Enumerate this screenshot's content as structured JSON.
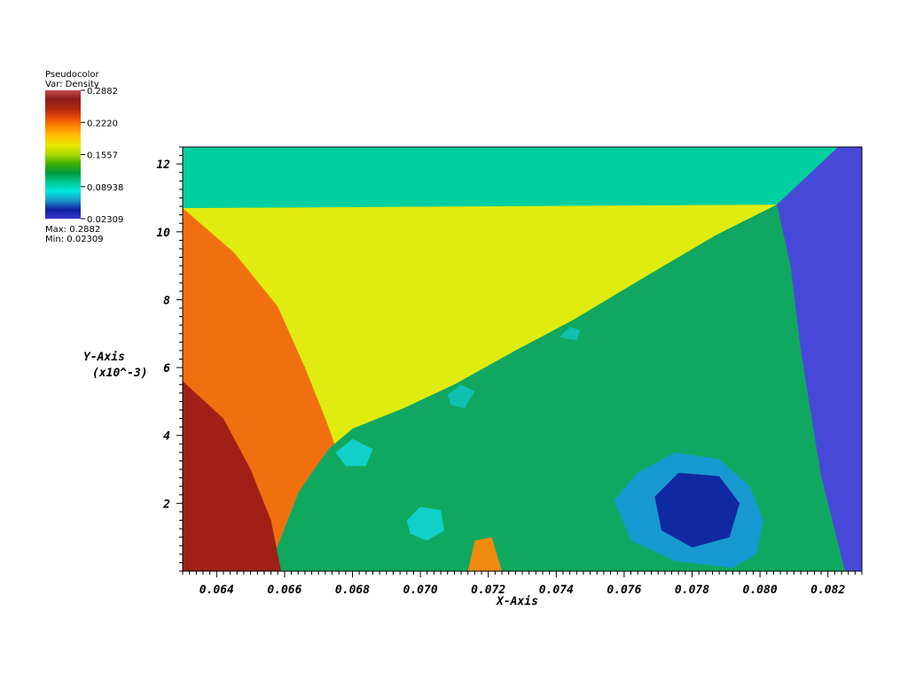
{
  "legend": {
    "plot_type": "Pseudocolor",
    "variable": "Var: Density",
    "max_label": "Max: 0.2882",
    "min_label": "Min: 0.02309",
    "ticks": [
      "0.2882",
      "0.2220",
      "0.1557",
      "0.08938",
      "0.02309"
    ],
    "colors": [
      "#c64848",
      "#8b1a1a",
      "#b22a10",
      "#e84a08",
      "#ff8a00",
      "#ffc000",
      "#e8e800",
      "#a8d800",
      "#40b000",
      "#009a40",
      "#00c890",
      "#00e8e0",
      "#1898c8",
      "#1020a0",
      "#3838c8"
    ]
  },
  "chart_data": {
    "type": "heatmap",
    "title": "",
    "xlabel": "X-Axis",
    "ylabel": "Y-Axis",
    "ylabel_scale": "(x10^-3)",
    "xlim": [
      0.063,
      0.083
    ],
    "ylim": [
      0,
      12.5
    ],
    "x_ticks": [
      "0.064",
      "0.066",
      "0.068",
      "0.070",
      "0.072",
      "0.074",
      "0.076",
      "0.078",
      "0.080",
      "0.082"
    ],
    "x_tick_values": [
      0.064,
      0.066,
      0.068,
      0.07,
      0.072,
      0.074,
      0.076,
      0.078,
      0.08,
      0.082
    ],
    "y_ticks": [
      "2",
      "4",
      "6",
      "8",
      "10",
      "12"
    ],
    "y_tick_values": [
      2,
      4,
      6,
      8,
      10,
      12
    ],
    "variable": "Density",
    "value_range": [
      0.02309,
      0.2882
    ],
    "regions": [
      {
        "id": "top-band",
        "color": "#00d0a0",
        "points": [
          [
            0.063,
            12.5
          ],
          [
            0.0823,
            12.5
          ],
          [
            0.0805,
            10.8
          ],
          [
            0.063,
            10.7
          ]
        ]
      },
      {
        "id": "right-region",
        "color": "#4848d8",
        "points": [
          [
            0.0823,
            12.5
          ],
          [
            0.083,
            12.5
          ],
          [
            0.083,
            0
          ],
          [
            0.0825,
            0
          ],
          [
            0.0818,
            2.8
          ],
          [
            0.0805,
            10.8
          ]
        ]
      },
      {
        "id": "yellow-wedge",
        "color": "#e0ec10",
        "points": [
          [
            0.063,
            10.7
          ],
          [
            0.0805,
            10.8
          ],
          [
            0.0787,
            9.9
          ],
          [
            0.0765,
            8.6
          ],
          [
            0.0745,
            7.4
          ],
          [
            0.0728,
            6.5
          ],
          [
            0.071,
            5.5
          ],
          [
            0.0695,
            4.8
          ],
          [
            0.068,
            4.2
          ],
          [
            0.0673,
            3.6
          ],
          [
            0.0668,
            2.9
          ],
          [
            0.0664,
            2.3
          ],
          [
            0.0655,
            0
          ],
          [
            0.063,
            0
          ]
        ]
      },
      {
        "id": "orange-region",
        "color": "#f07010",
        "points": [
          [
            0.063,
            10.7
          ],
          [
            0.0645,
            9.4
          ],
          [
            0.0658,
            7.8
          ],
          [
            0.0666,
            6
          ],
          [
            0.0672,
            4.5
          ],
          [
            0.0676,
            3.4
          ],
          [
            0.0664,
            2.3
          ],
          [
            0.0655,
            0
          ],
          [
            0.063,
            0
          ]
        ]
      },
      {
        "id": "dark-red-core",
        "color": "#a02018",
        "points": [
          [
            0.063,
            5.6
          ],
          [
            0.0642,
            4.5
          ],
          [
            0.065,
            3
          ],
          [
            0.0656,
            1.5
          ],
          [
            0.0659,
            0
          ],
          [
            0.063,
            0
          ]
        ]
      },
      {
        "id": "green-mixing",
        "color": "#10a860",
        "points": [
          [
            0.0664,
            2.3
          ],
          [
            0.0668,
            2.9
          ],
          [
            0.0673,
            3.6
          ],
          [
            0.068,
            4.2
          ],
          [
            0.0695,
            4.8
          ],
          [
            0.071,
            5.5
          ],
          [
            0.0728,
            6.5
          ],
          [
            0.0745,
            7.4
          ],
          [
            0.0765,
            8.6
          ],
          [
            0.0787,
            9.9
          ],
          [
            0.0805,
            10.8
          ],
          [
            0.0809,
            9
          ],
          [
            0.0812,
            6.5
          ],
          [
            0.0816,
            4
          ],
          [
            0.0818,
            2.8
          ],
          [
            0.0825,
            0
          ],
          [
            0.0665,
            0
          ]
        ]
      },
      {
        "id": "blue-bubble",
        "color": "#1898d0",
        "points": [
          [
            0.0757,
            2.1
          ],
          [
            0.0764,
            2.9
          ],
          [
            0.0775,
            3.5
          ],
          [
            0.0788,
            3.3
          ],
          [
            0.0797,
            2.5
          ],
          [
            0.0801,
            1.5
          ],
          [
            0.0799,
            0.5
          ],
          [
            0.0792,
            0.1
          ],
          [
            0.0775,
            0.3
          ],
          [
            0.0762,
            0.9
          ]
        ]
      },
      {
        "id": "blue-core",
        "color": "#1028a0",
        "points": [
          [
            0.0769,
            2.2
          ],
          [
            0.0776,
            2.9
          ],
          [
            0.0788,
            2.8
          ],
          [
            0.0794,
            2
          ],
          [
            0.0791,
            1
          ],
          [
            0.078,
            0.7
          ],
          [
            0.0771,
            1.2
          ]
        ]
      },
      {
        "id": "vortex-1",
        "color": "#10d0c8",
        "points": [
          [
            0.0696,
            1.5
          ],
          [
            0.07,
            1.9
          ],
          [
            0.0706,
            1.8
          ],
          [
            0.0707,
            1.2
          ],
          [
            0.0702,
            0.9
          ],
          [
            0.0697,
            1.1
          ]
        ]
      },
      {
        "id": "vortex-2",
        "color": "#10d0c8",
        "points": [
          [
            0.0675,
            3.5
          ],
          [
            0.068,
            3.9
          ],
          [
            0.0686,
            3.6
          ],
          [
            0.0684,
            3.1
          ],
          [
            0.0678,
            3.1
          ]
        ]
      },
      {
        "id": "vortex-3",
        "color": "#10c0b0",
        "points": [
          [
            0.0708,
            5.2
          ],
          [
            0.0712,
            5.5
          ],
          [
            0.0716,
            5.3
          ],
          [
            0.0713,
            4.8
          ],
          [
            0.0709,
            4.9
          ]
        ]
      },
      {
        "id": "vortex-4",
        "color": "#10c0b0",
        "points": [
          [
            0.0741,
            6.9
          ],
          [
            0.0744,
            7.2
          ],
          [
            0.0747,
            7.1
          ],
          [
            0.0746,
            6.8
          ]
        ]
      },
      {
        "id": "base-strip-orange",
        "color": "#f08a10",
        "points": [
          [
            0.0714,
            0
          ],
          [
            0.0716,
            0.9
          ],
          [
            0.0721,
            1
          ],
          [
            0.0724,
            0
          ]
        ]
      }
    ]
  }
}
